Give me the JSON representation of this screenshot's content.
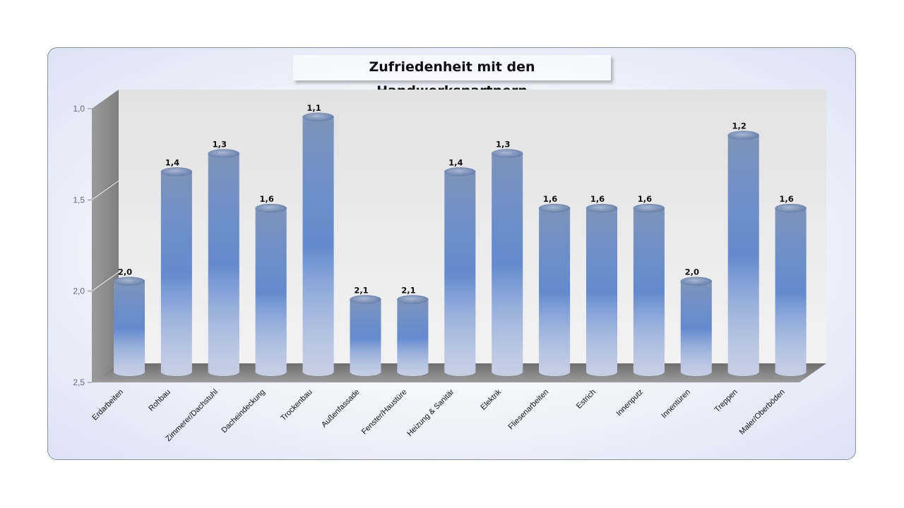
{
  "chart_data": {
    "type": "bar",
    "title": "Zufriedenheit mit den Handwerkspartnern",
    "categories": [
      "Erdarbeiten",
      "Rohbau",
      "Zimmerer/Dachstuhl",
      "Dacheindeckung",
      "Trockenbau",
      "Außenfassade",
      "Fenster/Haustüre",
      "Heizung & Sanitär",
      "Elektrik",
      "Fliesenarbeiten",
      "Estrich",
      "Innenputz",
      "Innentüren",
      "Treppen",
      "Maler/Oberböden"
    ],
    "values": [
      2.0,
      1.4,
      1.3,
      1.6,
      1.1,
      2.1,
      2.1,
      1.4,
      1.3,
      1.6,
      1.6,
      1.6,
      2.0,
      1.2,
      1.6
    ],
    "value_labels": [
      "2,0",
      "1,4",
      "1,3",
      "1,6",
      "1,1",
      "2,1",
      "2,1",
      "1,4",
      "1,3",
      "1,6",
      "1,6",
      "1,6",
      "2,0",
      "1,2",
      "1,6"
    ],
    "y_ticks": [
      "1,0",
      "1,5",
      "2,0",
      "2,5"
    ],
    "ylim": [
      1.0,
      2.5
    ],
    "y_inverted": true,
    "xlabel": "",
    "ylabel": "",
    "grid": false,
    "legend": "none",
    "colors": {
      "bar_top": "#7d93b9",
      "bar_mid": "#3f72c8",
      "bar_bottom": "#f4f6ff",
      "back_wall": "#ebebeb",
      "side_wall": "#8e8e8e",
      "floor": "#7f7f7f"
    }
  }
}
